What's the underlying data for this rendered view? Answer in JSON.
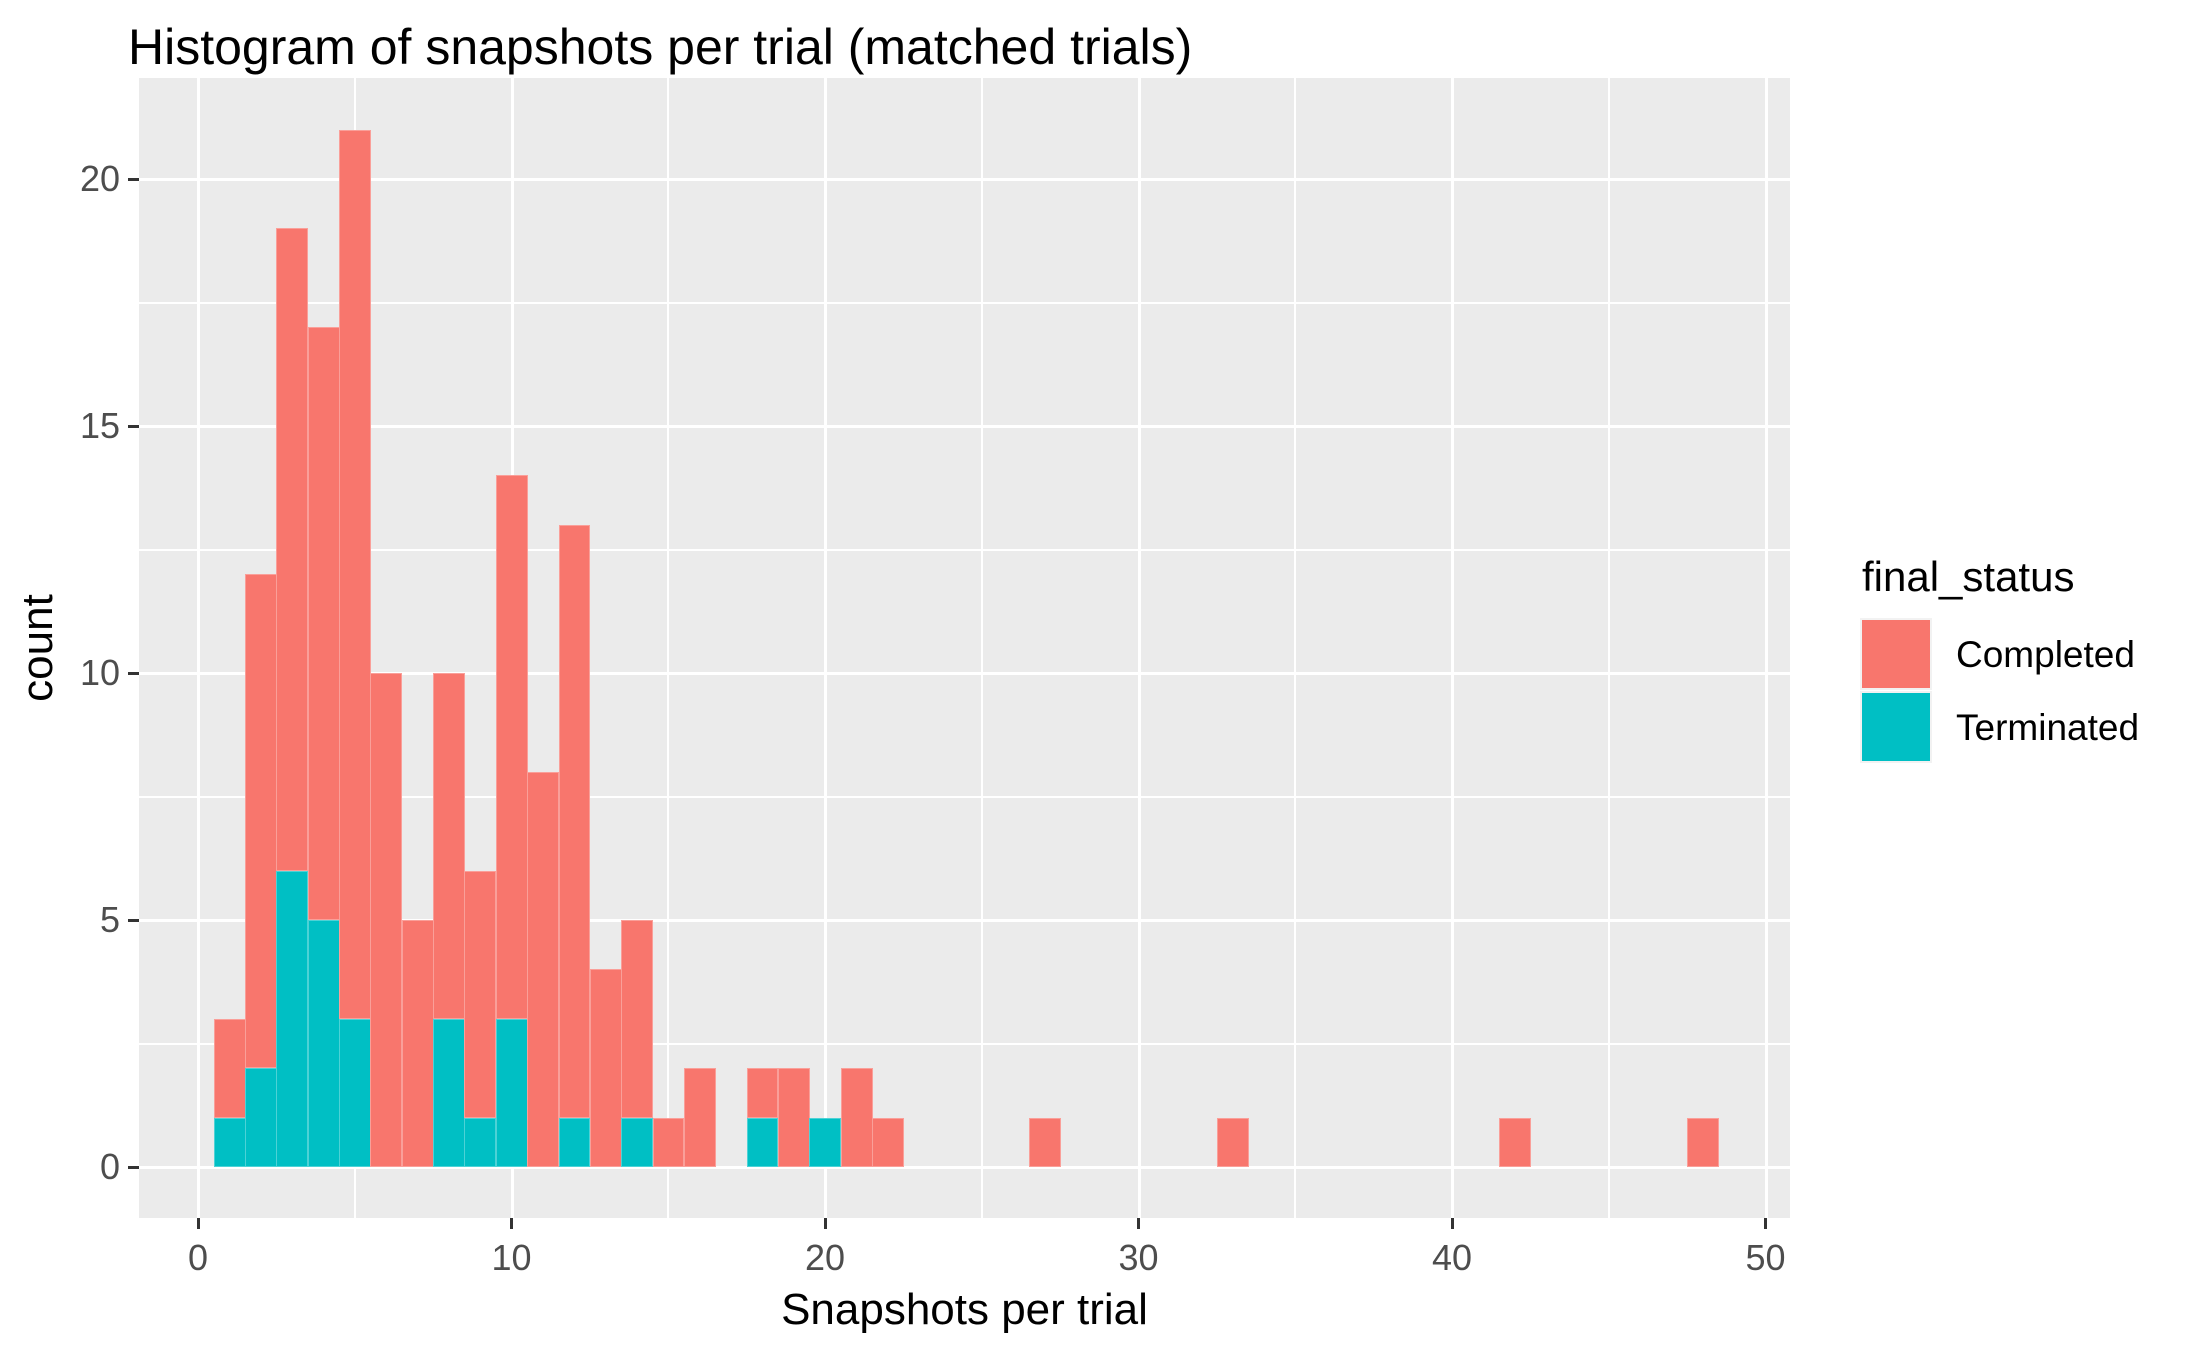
{
  "title": "Histogram of snapshots per trial (matched trials)",
  "axes": {
    "x": {
      "label": "Snapshots per trial",
      "ticks": [
        0,
        10,
        20,
        30,
        40,
        50
      ],
      "minor_ticks": [
        5,
        15,
        25,
        35,
        45
      ]
    },
    "y": {
      "label": "count",
      "ticks": [
        0,
        5,
        10,
        15,
        20
      ],
      "minor_ticks": [
        2.5,
        7.5,
        12.5,
        17.5
      ]
    }
  },
  "legend": {
    "title": "final_status",
    "items": [
      {
        "label": "Completed",
        "color": "#F8766D"
      },
      {
        "label": "Terminated",
        "color": "#00BFC4"
      }
    ]
  },
  "colors": {
    "completed": "#F8766D",
    "terminated": "#00BFC4",
    "panel_background": "#EBEBEB",
    "gridline": "#FFFFFF",
    "tick_mark": "#333333",
    "tick_text": "#4D4D4D"
  },
  "chart_data": {
    "type": "bar",
    "subtype": "stacked-histogram",
    "title": "Histogram of snapshots per trial (matched trials)",
    "xlabel": "Snapshots per trial",
    "ylabel": "count",
    "binwidth": 1,
    "xlim": [
      -1.9,
      50.9
    ],
    "ylim": [
      0,
      22
    ],
    "grid": "on",
    "legend_position": "right",
    "stack_order_bottom_to_top": [
      "Terminated",
      "Completed"
    ],
    "bins": [
      {
        "x": 1,
        "completed": 2,
        "terminated": 1
      },
      {
        "x": 2,
        "completed": 10,
        "terminated": 2
      },
      {
        "x": 3,
        "completed": 13,
        "terminated": 6
      },
      {
        "x": 4,
        "completed": 12,
        "terminated": 5
      },
      {
        "x": 5,
        "completed": 18,
        "terminated": 3
      },
      {
        "x": 6,
        "completed": 10,
        "terminated": 0
      },
      {
        "x": 7,
        "completed": 5,
        "terminated": 0
      },
      {
        "x": 8,
        "completed": 7,
        "terminated": 3
      },
      {
        "x": 9,
        "completed": 5,
        "terminated": 1
      },
      {
        "x": 10,
        "completed": 11,
        "terminated": 3
      },
      {
        "x": 11,
        "completed": 8,
        "terminated": 0
      },
      {
        "x": 12,
        "completed": 12,
        "terminated": 1
      },
      {
        "x": 13,
        "completed": 4,
        "terminated": 0
      },
      {
        "x": 14,
        "completed": 4,
        "terminated": 1
      },
      {
        "x": 15,
        "completed": 1,
        "terminated": 0
      },
      {
        "x": 16,
        "completed": 2,
        "terminated": 0
      },
      {
        "x": 18,
        "completed": 1,
        "terminated": 1
      },
      {
        "x": 19,
        "completed": 2,
        "terminated": 0
      },
      {
        "x": 20,
        "completed": 0,
        "terminated": 1
      },
      {
        "x": 21,
        "completed": 2,
        "terminated": 0
      },
      {
        "x": 22,
        "completed": 1,
        "terminated": 0
      },
      {
        "x": 27,
        "completed": 1,
        "terminated": 0
      },
      {
        "x": 33,
        "completed": 1,
        "terminated": 0
      },
      {
        "x": 42,
        "completed": 1,
        "terminated": 0
      },
      {
        "x": 48,
        "completed": 1,
        "terminated": 0
      }
    ]
  }
}
